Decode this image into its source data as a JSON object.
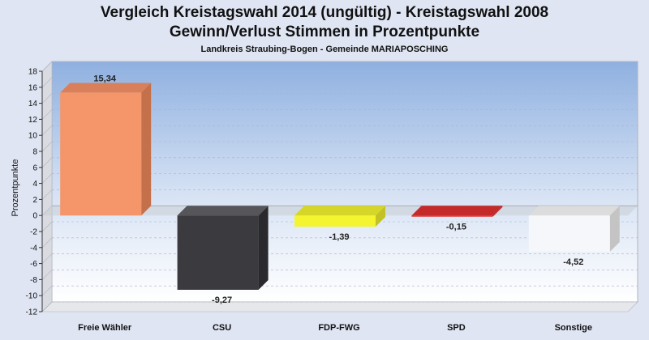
{
  "header": {
    "title_line1": "Vergleich Kreistagswahl 2014 (ungültig) - Kreistagswahl 2008",
    "title_line2": "Gewinn/Verlust Stimmen in Prozentpunkte",
    "subtitle": "Landkreis Straubing-Bogen - Gemeinde MARIAPOSCHING"
  },
  "chart_data": {
    "type": "bar",
    "title": "Vergleich Kreistagswahl 2014 (ungültig) - Kreistagswahl 2008",
    "subtitle": "Gewinn/Verlust Stimmen in Prozentpunkte",
    "xlabel": "",
    "ylabel": "Prozentpunkte",
    "ylim": [
      -12,
      18
    ],
    "yticks": [
      18,
      16,
      14,
      12,
      10,
      8,
      6,
      4,
      2,
      0,
      -2,
      -4,
      -6,
      -8,
      -10,
      -12
    ],
    "grid": true,
    "categories": [
      "Freie Wähler",
      "CSU",
      "FDP-FWG",
      "SPD",
      "Sonstige"
    ],
    "values": [
      15.34,
      -9.27,
      -1.39,
      -0.15,
      -4.52
    ],
    "labels": [
      "15,34",
      "-9,27",
      "-1,39",
      "-0,15",
      "-4,52"
    ],
    "colors": [
      "#f4956a",
      "#3b3b3f",
      "#f4f430",
      "#e03030",
      "#f6f7fb"
    ],
    "side_colors": [
      "#c4704b",
      "#2a2a2e",
      "#c2c225",
      "#b02525",
      "#c4c4c4"
    ],
    "top_colors": [
      "#d9805a",
      "#55555a",
      "#d6d628",
      "#c42a2a",
      "#dcdcdc"
    ]
  }
}
